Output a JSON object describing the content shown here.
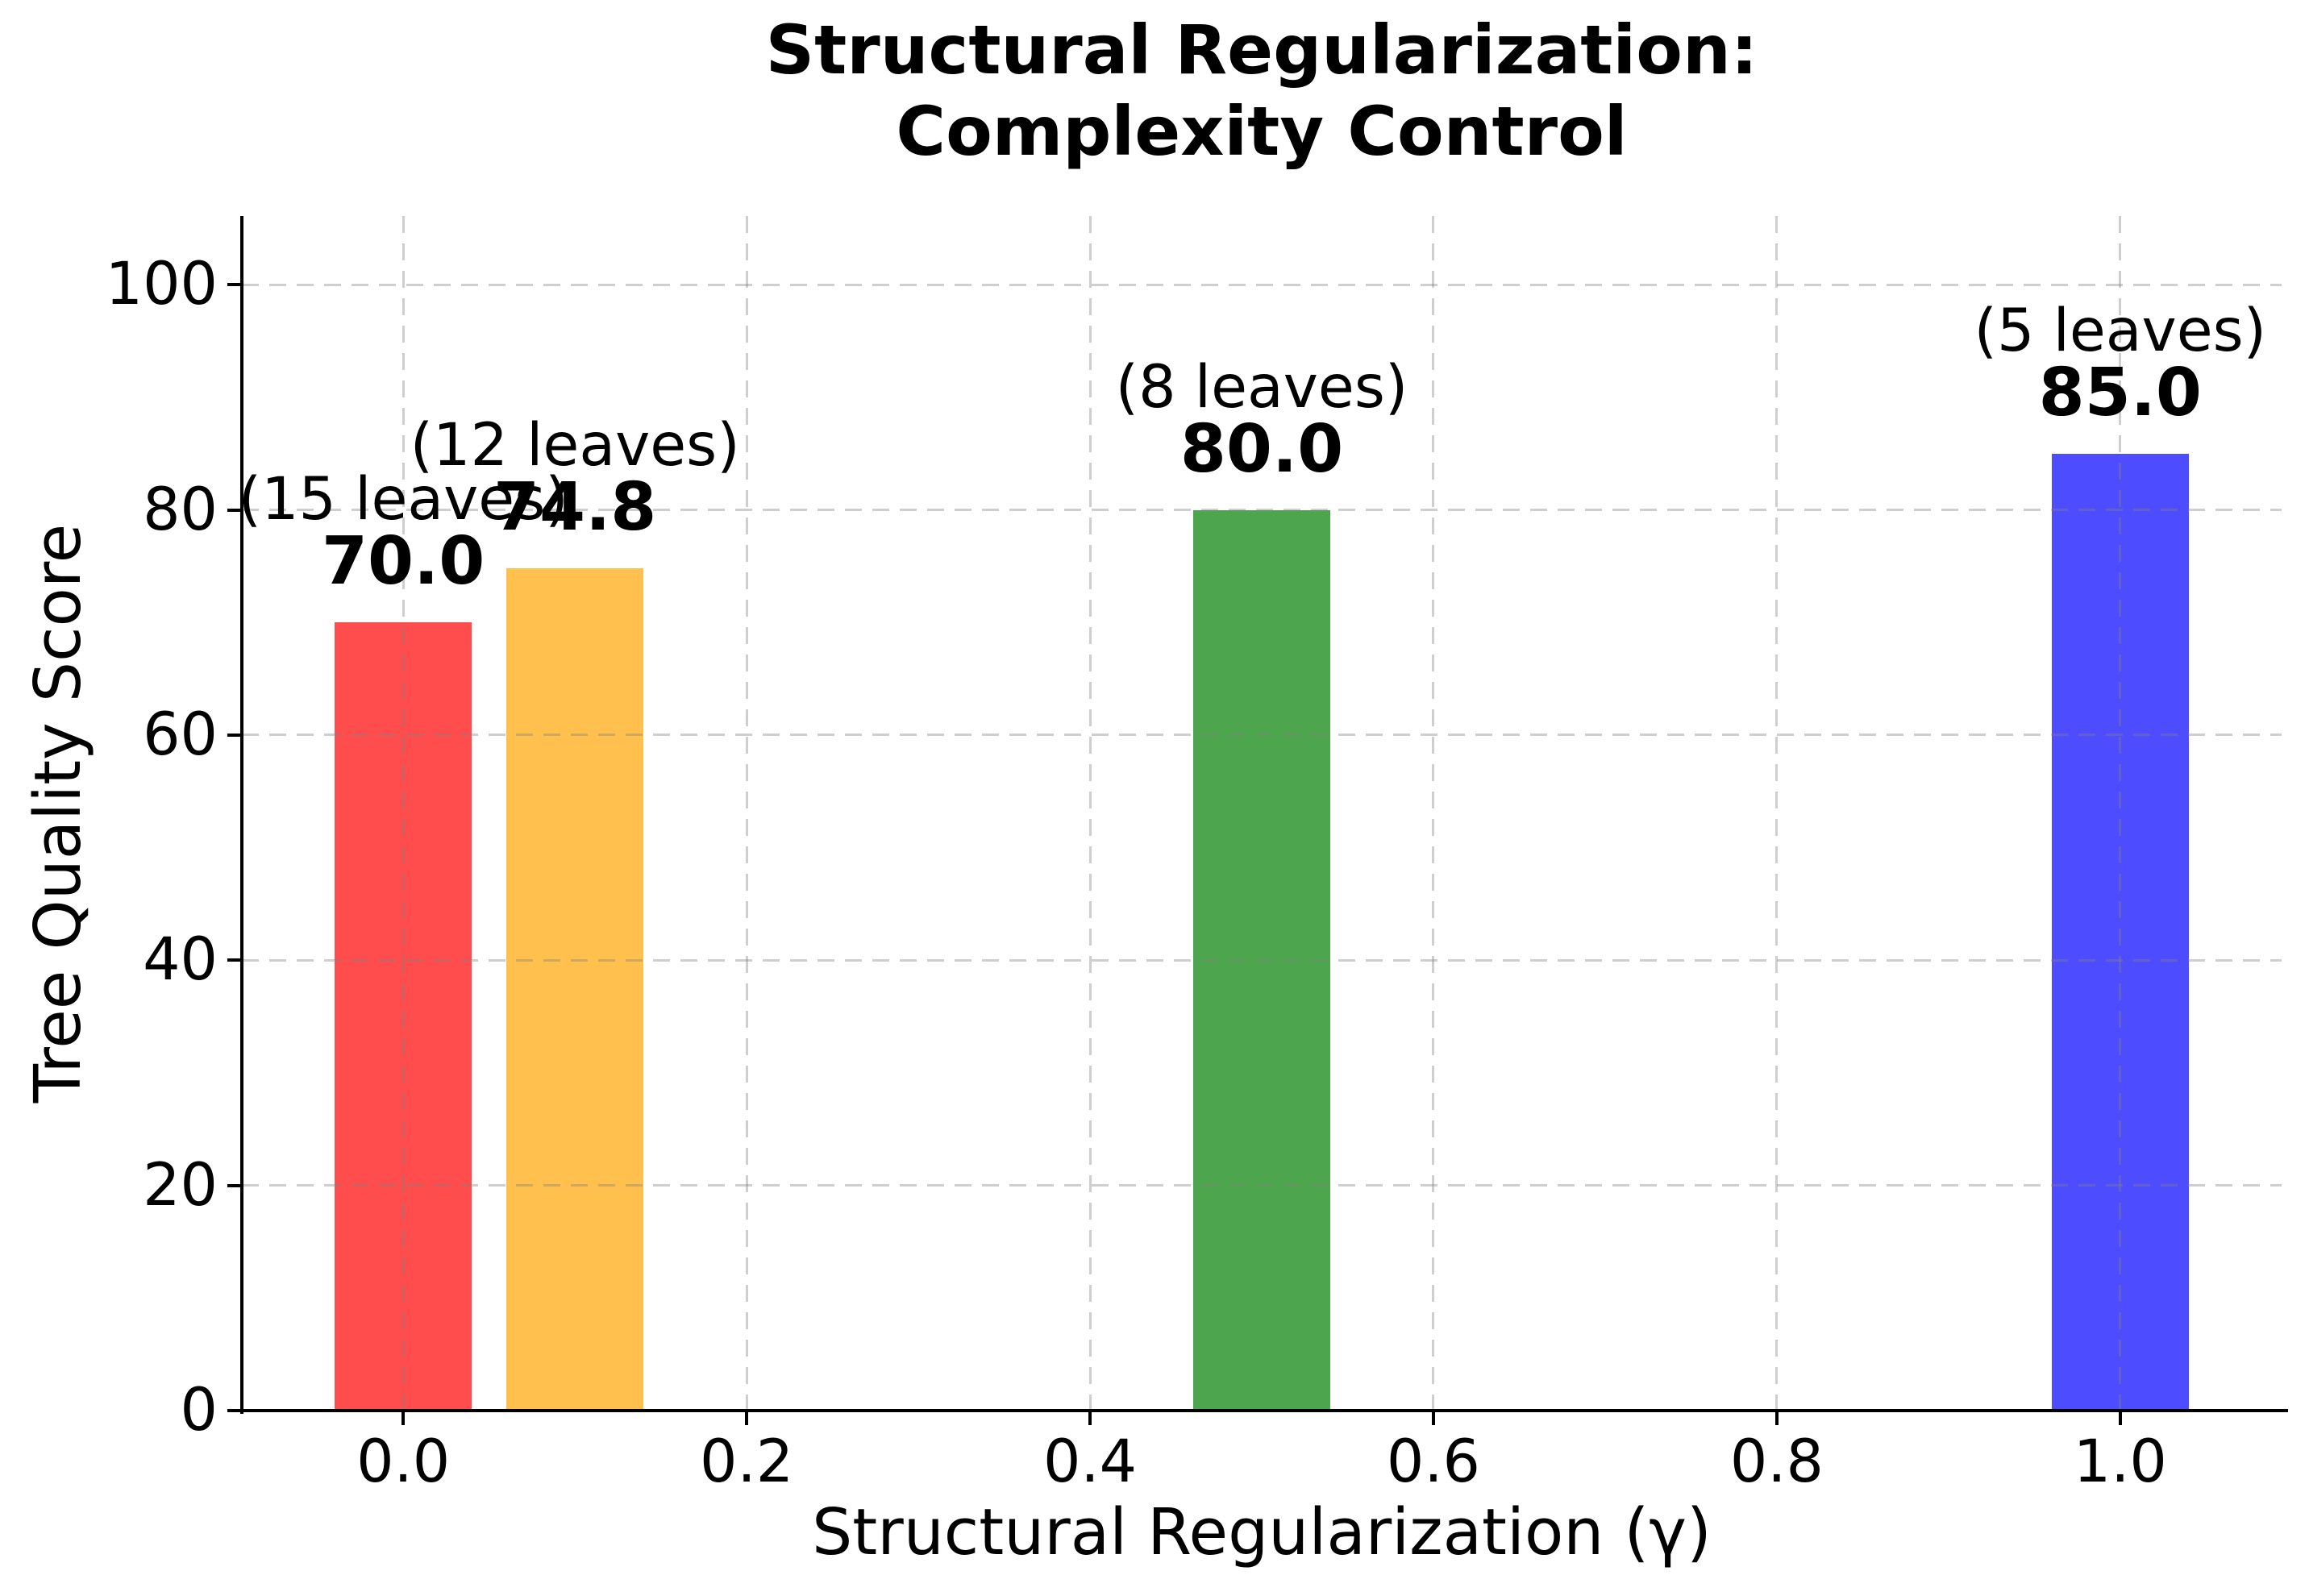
{
  "figure": {
    "background": "#FFFFFF",
    "text_color": "#000000"
  },
  "chart_data": {
    "type": "bar",
    "title": "Structural Regularization:\nComplexity Control",
    "title_lines": [
      "Structural Regularization:",
      "Complexity Control"
    ],
    "xlabel": "Structural Regularization (γ)",
    "ylabel": "Tree Quality Score",
    "xlim": [
      -0.094,
      1.094
    ],
    "ylim": [
      0,
      106.1
    ],
    "grid": true,
    "grid_linestyle": "dashed",
    "grid_color": "#C8C8C8",
    "legend_position": "none",
    "bar_width": 0.08,
    "xticks": [
      {
        "value": 0.0,
        "label": "0.0"
      },
      {
        "value": 0.2,
        "label": "0.2"
      },
      {
        "value": 0.4,
        "label": "0.4"
      },
      {
        "value": 0.6,
        "label": "0.6"
      },
      {
        "value": 0.8,
        "label": "0.8"
      },
      {
        "value": 1.0,
        "label": "1.0"
      }
    ],
    "yticks": [
      {
        "value": 0,
        "label": "0"
      },
      {
        "value": 20,
        "label": "20"
      },
      {
        "value": 40,
        "label": "40"
      },
      {
        "value": 60,
        "label": "60"
      },
      {
        "value": 80,
        "label": "80"
      },
      {
        "value": 100,
        "label": "100"
      }
    ],
    "bars": [
      {
        "x": 0.0,
        "value": 70.0,
        "value_label": "70.0",
        "annotation": "(15 leaves)",
        "leaves": 15,
        "color": "#FF4D4D"
      },
      {
        "x": 0.1,
        "value": 74.8,
        "value_label": "74.8",
        "annotation": "(12 leaves)",
        "leaves": 12,
        "color": "#FFC04D"
      },
      {
        "x": 0.5,
        "value": 80.0,
        "value_label": "80.0",
        "annotation": "(8 leaves)",
        "leaves": 8,
        "color": "#4DA64D"
      },
      {
        "x": 1.0,
        "value": 85.0,
        "value_label": "85.0",
        "annotation": "(5 leaves)",
        "leaves": 5,
        "color": "#4D4DFF"
      }
    ]
  }
}
